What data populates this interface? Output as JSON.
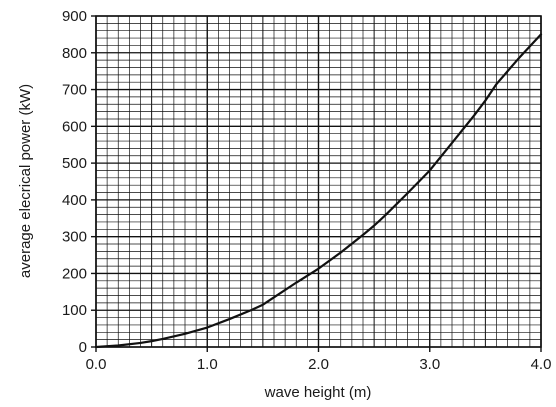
{
  "chart_data": {
    "type": "line",
    "title": "",
    "xlabel": "wave height (m)",
    "ylabel": "average elecrical power (kW)",
    "xlim": [
      0,
      4.0
    ],
    "ylim": [
      0,
      900
    ],
    "grid": true,
    "x_ticks": [
      "0.0",
      "1.0",
      "2.0",
      "3.0",
      "4.0"
    ],
    "y_ticks": [
      "0",
      "100",
      "200",
      "300",
      "400",
      "500",
      "600",
      "700",
      "800",
      "900"
    ],
    "series": [
      {
        "x": [
          0.0,
          0.2,
          0.4,
          0.5,
          0.6,
          0.8,
          1.0,
          1.2,
          1.4,
          1.5,
          1.6,
          1.8,
          2.0,
          2.2,
          2.4,
          2.5,
          2.6,
          2.8,
          3.0,
          3.2,
          3.4,
          3.5,
          3.6,
          3.8,
          4.0
        ],
        "y": [
          0,
          4,
          11,
          16,
          22,
          36,
          53,
          76,
          101,
          115,
          135,
          175,
          213,
          257,
          305,
          330,
          358,
          418,
          480,
          555,
          630,
          670,
          715,
          785,
          850
        ]
      }
    ]
  }
}
